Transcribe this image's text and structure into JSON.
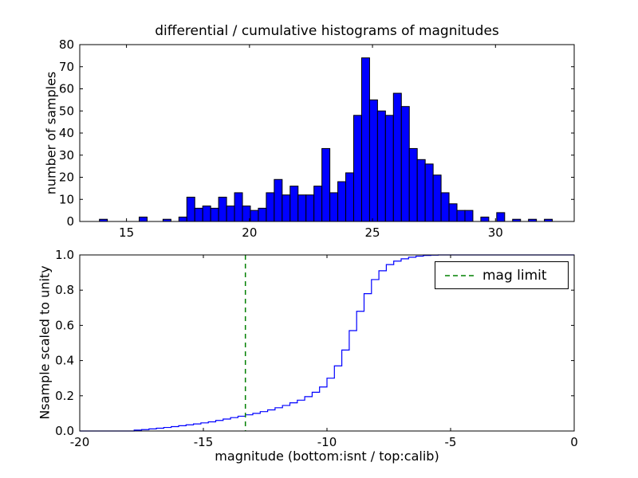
{
  "figure": {
    "background": "#ffffff"
  },
  "chart_data": [
    {
      "type": "bar",
      "subtype": "histogram",
      "title": "differential / cumulative histograms of magnitudes",
      "ylabel": "number of samples",
      "xlim": [
        13.1,
        33.2
      ],
      "ylim": [
        0,
        80
      ],
      "xticks": [
        15,
        20,
        25,
        30
      ],
      "xtick_labels": [
        "15",
        "20",
        "25",
        "30"
      ],
      "yticks": [
        0,
        10,
        20,
        30,
        40,
        50,
        60,
        70,
        80
      ],
      "ytick_labels": [
        "0",
        "10",
        "20",
        "30",
        "40",
        "50",
        "60",
        "70",
        "80"
      ],
      "bar_color": "#0000ff",
      "bar_edge_color": "#000000",
      "bin_start": 13.9,
      "bin_width": 0.323,
      "counts": [
        1,
        0,
        0,
        0,
        0,
        2,
        0,
        0,
        1,
        0,
        2,
        11,
        6,
        7,
        6,
        11,
        7,
        13,
        7,
        5,
        6,
        13,
        19,
        12,
        16,
        12,
        12,
        16,
        33,
        13,
        18,
        22,
        48,
        74,
        55,
        50,
        48,
        58,
        52,
        33,
        28,
        26,
        21,
        13,
        8,
        5,
        5,
        0,
        2,
        0,
        4,
        0,
        1,
        0,
        1,
        0,
        1
      ],
      "grid": false
    },
    {
      "type": "line",
      "subtype": "cumulative-step",
      "xlabel": "magnitude (bottom:isnt / top:calib)",
      "ylabel": "Nsample scaled to unity",
      "xlim": [
        -20,
        0
      ],
      "ylim": [
        0.0,
        1.0
      ],
      "xticks": [
        -20,
        -15,
        -10,
        -5,
        0
      ],
      "xtick_labels": [
        "-20",
        "-15",
        "-10",
        "-5",
        "0"
      ],
      "yticks": [
        0.0,
        0.2,
        0.4,
        0.6,
        0.8,
        1.0
      ],
      "ytick_labels": [
        "0.0",
        "0.2",
        "0.4",
        "0.6",
        "0.8",
        "1.0"
      ],
      "line_color": "#0000ff",
      "mag_limit_x": -13.3,
      "mag_limit_color": "#008000",
      "legend": {
        "label": "mag limit",
        "position": "upper right"
      },
      "steps": {
        "x": [
          -17.8,
          -17.5,
          -17.2,
          -16.9,
          -16.6,
          -16.3,
          -16.0,
          -15.7,
          -15.4,
          -15.1,
          -14.8,
          -14.5,
          -14.2,
          -13.9,
          -13.6,
          -13.3,
          -13.0,
          -12.7,
          -12.4,
          -12.1,
          -11.8,
          -11.5,
          -11.2,
          -10.9,
          -10.6,
          -10.3,
          -10.0,
          -9.7,
          -9.4,
          -9.1,
          -8.8,
          -8.5,
          -8.2,
          -7.9,
          -7.6,
          -7.3,
          -7.0,
          -6.7,
          -6.4,
          -6.1,
          -5.8,
          -5.5
        ],
        "y": [
          0.005,
          0.008,
          0.012,
          0.016,
          0.02,
          0.025,
          0.03,
          0.035,
          0.04,
          0.046,
          0.052,
          0.06,
          0.068,
          0.076,
          0.084,
          0.092,
          0.1,
          0.11,
          0.12,
          0.132,
          0.145,
          0.16,
          0.175,
          0.195,
          0.22,
          0.25,
          0.3,
          0.37,
          0.46,
          0.57,
          0.68,
          0.78,
          0.86,
          0.91,
          0.945,
          0.965,
          0.978,
          0.987,
          0.993,
          0.997,
          0.999,
          1.0
        ]
      },
      "grid": false
    }
  ]
}
